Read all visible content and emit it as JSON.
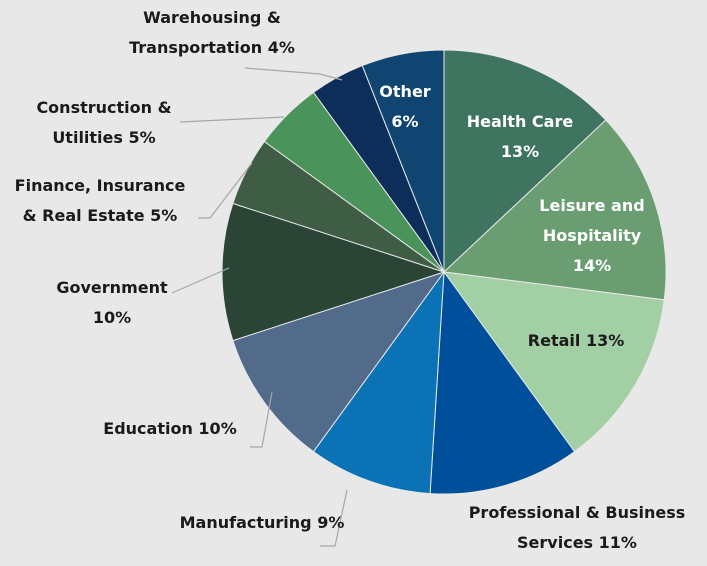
{
  "chart_data": {
    "type": "pie",
    "categories": [
      "Health Care",
      "Leisure and Hospitality",
      "Retail",
      "Professional & Business Services",
      "Manufacturing",
      "Education",
      "Government",
      "Finance, Insurance & Real Estate",
      "Construction & Utilities",
      "Warehousing & Transportation",
      "Other"
    ],
    "values": [
      13,
      14,
      13,
      11,
      9,
      10,
      10,
      5,
      5,
      4,
      6
    ],
    "value_labels": [
      "13%",
      "14%",
      "13%",
      "11%",
      "9%",
      "10%",
      "10%",
      "5%",
      "5%",
      "4%",
      "6%"
    ],
    "colors": [
      "#3f7560",
      "#6a9e72",
      "#a3cfa5",
      "#004f9a",
      "#0a72b5",
      "#536b8a",
      "#2a4536",
      "#3f5d44",
      "#4a935a",
      "#0d2e5a",
      "#0f4570"
    ]
  }
}
